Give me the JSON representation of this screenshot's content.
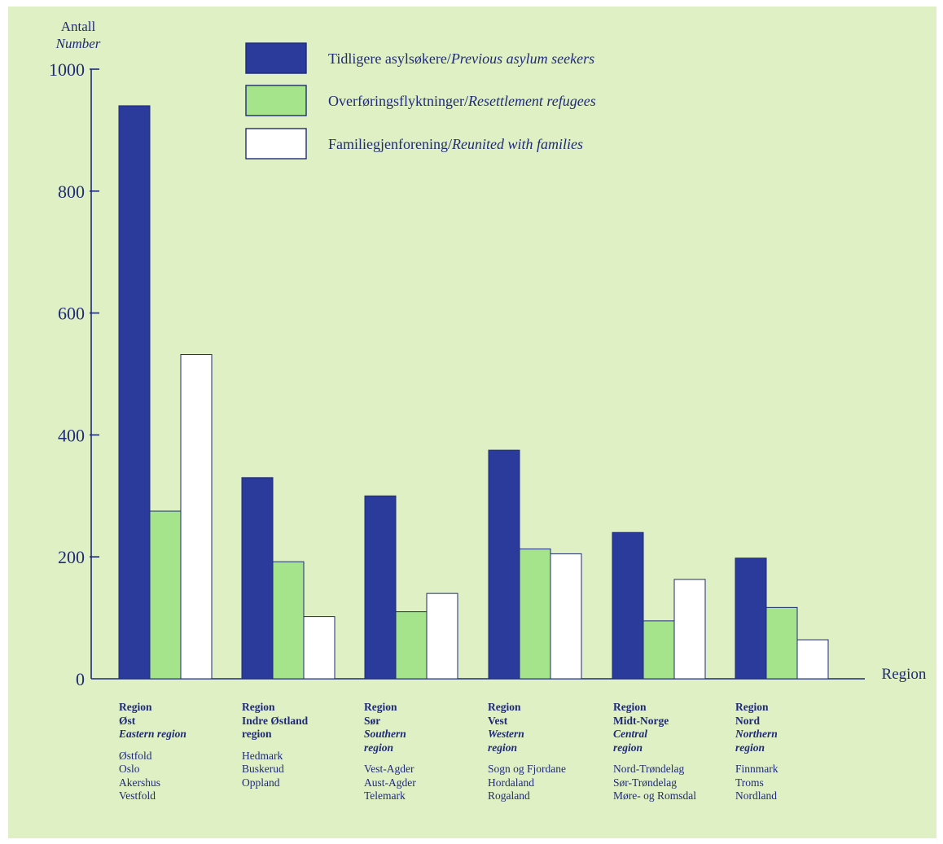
{
  "colors": {
    "background": "#dff0c4",
    "series_previous_asylum": "#2b3b9c",
    "series_resettlement": "#a6e48c",
    "series_family": "#ffffff",
    "text": "#1f2a78"
  },
  "chart_data": {
    "type": "bar",
    "ylabel": [
      "Antall",
      "Number"
    ],
    "xlabel": "Region",
    "ylim": [
      0,
      1000
    ],
    "yticks": [
      "0",
      "200",
      "400",
      "600",
      "800",
      "1000"
    ],
    "categories": [
      "Region Øst",
      "Region Indre Østland",
      "Region Sør",
      "Region Vest",
      "Region Midt-Norge",
      "Region Nord"
    ],
    "series": [
      {
        "name_no": "Tidligere asylsøkere/",
        "name_en": "Previous asylum seekers",
        "color": "#2b3b9c",
        "values": [
          940,
          330,
          300,
          375,
          240,
          198
        ]
      },
      {
        "name_no": "Overføringsflyktninger/",
        "name_en": "Resettlement refugees",
        "color": "#a6e48c",
        "values": [
          275,
          192,
          110,
          213,
          95,
          117
        ]
      },
      {
        "name_no": "Familiegjenforening/",
        "name_en": "Reunited with families",
        "color": "#ffffff",
        "values": [
          532,
          102,
          140,
          205,
          163,
          64
        ]
      }
    ],
    "legend_position": "top"
  },
  "regions": [
    {
      "bold": [
        "Region",
        "Øst"
      ],
      "italic": [
        "Eastern region"
      ],
      "counties": [
        "Østfold",
        "Oslo",
        "Akershus",
        "Vestfold"
      ]
    },
    {
      "bold": [
        "Region",
        "Indre Østland",
        "region"
      ],
      "italic": [],
      "counties": [
        "Hedmark",
        "Buskerud",
        "Oppland"
      ]
    },
    {
      "bold": [
        "Region",
        "Sør"
      ],
      "italic": [
        "Southern",
        "region"
      ],
      "counties": [
        "Vest-Agder",
        "Aust-Agder",
        "Telemark"
      ]
    },
    {
      "bold": [
        "Region",
        "Vest"
      ],
      "italic": [
        "Western",
        "region"
      ],
      "counties": [
        "Sogn og Fjordane",
        "Hordaland",
        "Rogaland"
      ]
    },
    {
      "bold": [
        "Region",
        "Midt-Norge"
      ],
      "italic": [
        "Central",
        "region"
      ],
      "counties": [
        "Nord-Trøndelag",
        "Sør-Trøndelag",
        "Møre- og Romsdal"
      ]
    },
    {
      "bold": [
        "Region",
        "Nord"
      ],
      "italic": [
        "Northern",
        "region"
      ],
      "counties": [
        "Finnmark",
        "Troms",
        "Nordland"
      ]
    }
  ]
}
